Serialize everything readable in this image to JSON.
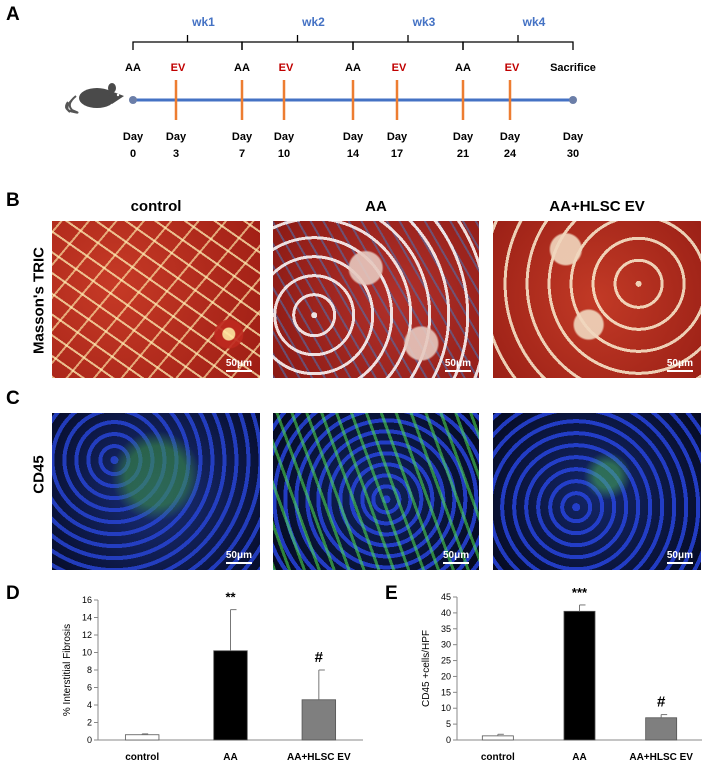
{
  "panels": {
    "A": "A",
    "B": "B",
    "C": "C",
    "D": "D",
    "E": "E"
  },
  "timeline": {
    "weeks": [
      "wk1",
      "wk2",
      "wk3",
      "wk4"
    ],
    "top_labels": [
      "AA",
      "EV",
      "AA",
      "EV",
      "AA",
      "EV",
      "AA",
      "EV",
      "Sacrifice"
    ],
    "days": [
      "Day\n0",
      "Day\n3",
      "Day\n7",
      "Day\n10",
      "Day\n14",
      "Day\n17",
      "Day\n21",
      "Day\n24",
      "Day\n30"
    ],
    "colors": {
      "AA": "#000000",
      "EV": "#c00000",
      "week": "#4472c4",
      "line": "#4472c4",
      "tick": "#ed7d31"
    }
  },
  "columns": [
    "control",
    "AA",
    "AA+HLSC EV"
  ],
  "row_labels": {
    "masson": "Masson's TRIC",
    "cd45": "CD45"
  },
  "scale": "50μm",
  "chart_data": [
    {
      "type": "bar",
      "categories": [
        "control",
        "AA",
        "AA+HLSC EV"
      ],
      "values": [
        0.6,
        10.2,
        4.6
      ],
      "errors": [
        0.1,
        4.7,
        3.4
      ],
      "colors": [
        "#ffffff",
        "#000000",
        "#7f7f7f"
      ],
      "annotations": [
        "",
        "**",
        "#"
      ],
      "ylabel": "% Interstitial Fibrosis",
      "ylim": [
        0,
        16
      ],
      "yticks": [
        0,
        2,
        4,
        6,
        8,
        10,
        12,
        14,
        16
      ]
    },
    {
      "type": "bar",
      "categories": [
        "control",
        "AA",
        "AA+HLSC EV"
      ],
      "values": [
        1.3,
        40.5,
        7.0
      ],
      "errors": [
        0.5,
        2.0,
        1.0
      ],
      "colors": [
        "#ffffff",
        "#000000",
        "#7f7f7f"
      ],
      "annotations": [
        "",
        "***",
        "#"
      ],
      "ylabel": "CD45 +cells/HPF",
      "ylim": [
        0,
        45
      ],
      "yticks": [
        0,
        5,
        10,
        15,
        20,
        25,
        30,
        35,
        40,
        45
      ]
    }
  ]
}
